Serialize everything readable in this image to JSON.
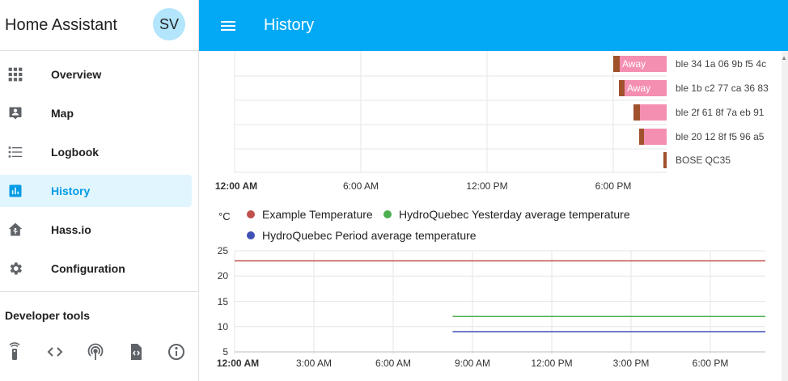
{
  "sidebar": {
    "title": "Home Assistant",
    "avatar_initials": "SV",
    "items": [
      {
        "label": "Overview",
        "icon": "grid-icon"
      },
      {
        "label": "Map",
        "icon": "map-account-icon"
      },
      {
        "label": "Logbook",
        "icon": "list-icon"
      },
      {
        "label": "History",
        "icon": "chart-bar-icon",
        "active": true
      },
      {
        "label": "Hass.io",
        "icon": "home-assistant-icon"
      },
      {
        "label": "Configuration",
        "icon": "gear-icon"
      }
    ],
    "developer_tools_title": "Developer tools",
    "developer_tools": [
      "remote-icon",
      "code-icon",
      "antenna-icon",
      "file-code-icon",
      "info-icon"
    ]
  },
  "header": {
    "title": "History"
  },
  "timeline": {
    "entities": [
      {
        "name": "ble 34 1a 06 9b f5 4c",
        "state": "Away"
      },
      {
        "name": "ble 1b c2 77 ca 36 83",
        "state": "Away"
      },
      {
        "name": "ble 2f 61 8f 7a eb 91",
        "state": ""
      },
      {
        "name": "ble 20 12 8f f5 96 a5",
        "state": ""
      },
      {
        "name": "BOSE QC35",
        "state": ""
      }
    ],
    "x_labels": [
      "12:00 AM",
      "6:00 AM",
      "12:00 PM",
      "6:00 PM"
    ],
    "colors": {
      "away": "#f48fb1",
      "home": "#a0522d"
    }
  },
  "chart_data": {
    "type": "line",
    "title": "",
    "xlabel": "",
    "ylabel": "°C",
    "unit": "°C",
    "x": [
      "12:00 AM",
      "3:00 AM",
      "6:00 AM",
      "9:00 AM",
      "12:00 PM",
      "3:00 PM",
      "6:00 PM"
    ],
    "ylim": [
      5,
      25
    ],
    "yticks": [
      25,
      20,
      15,
      10,
      5
    ],
    "series": [
      {
        "name": "Example Temperature",
        "color": "#c0504d",
        "start": "12:00 AM",
        "end": "end",
        "value": 23
      },
      {
        "name": "HydroQuebec Yesterday average temperature",
        "color": "#4caf50",
        "start": "8:15 AM",
        "end": "end",
        "value": 12
      },
      {
        "name": "HydroQuebec Period average temperature",
        "color": "#3f51b5",
        "start": "8:15 AM",
        "end": "end",
        "value": 9
      }
    ]
  }
}
